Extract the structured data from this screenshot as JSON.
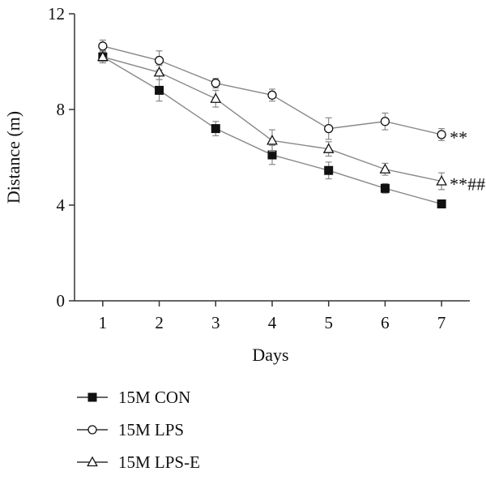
{
  "chart_data": {
    "type": "line",
    "xlabel": "Days",
    "ylabel": "Distance (m)",
    "x": [
      1,
      2,
      3,
      4,
      5,
      6,
      7
    ],
    "xlim": [
      0.5,
      7.5
    ],
    "ylim": [
      0,
      12
    ],
    "xticks": [
      1,
      2,
      3,
      4,
      5,
      6,
      7
    ],
    "yticks": [
      0,
      4,
      8,
      12
    ],
    "grid": false,
    "legend_position": "bottom-left",
    "series": [
      {
        "name": "15M CON",
        "marker": "filled-square",
        "values": [
          10.2,
          8.8,
          7.2,
          6.1,
          5.45,
          4.7,
          4.05
        ],
        "errors": [
          0.25,
          0.45,
          0.3,
          0.4,
          0.35,
          0.2,
          0.1
        ]
      },
      {
        "name": "15M LPS",
        "marker": "open-circle",
        "values": [
          10.65,
          10.05,
          9.1,
          8.6,
          7.2,
          7.5,
          6.95
        ],
        "errors": [
          0.25,
          0.4,
          0.2,
          0.25,
          0.45,
          0.35,
          0.25
        ]
      },
      {
        "name": "15M LPS-E",
        "marker": "open-triangle",
        "values": [
          10.2,
          9.55,
          8.45,
          6.7,
          6.35,
          5.5,
          5.0
        ],
        "errors": [
          0.25,
          0.3,
          0.35,
          0.45,
          0.3,
          0.25,
          0.35
        ]
      }
    ],
    "annotations": [
      {
        "text": "**",
        "series": 1,
        "x": 7
      },
      {
        "text": "**##",
        "series": 2,
        "x": 7
      }
    ],
    "line_color": "#888888",
    "marker_color": "#111111"
  }
}
